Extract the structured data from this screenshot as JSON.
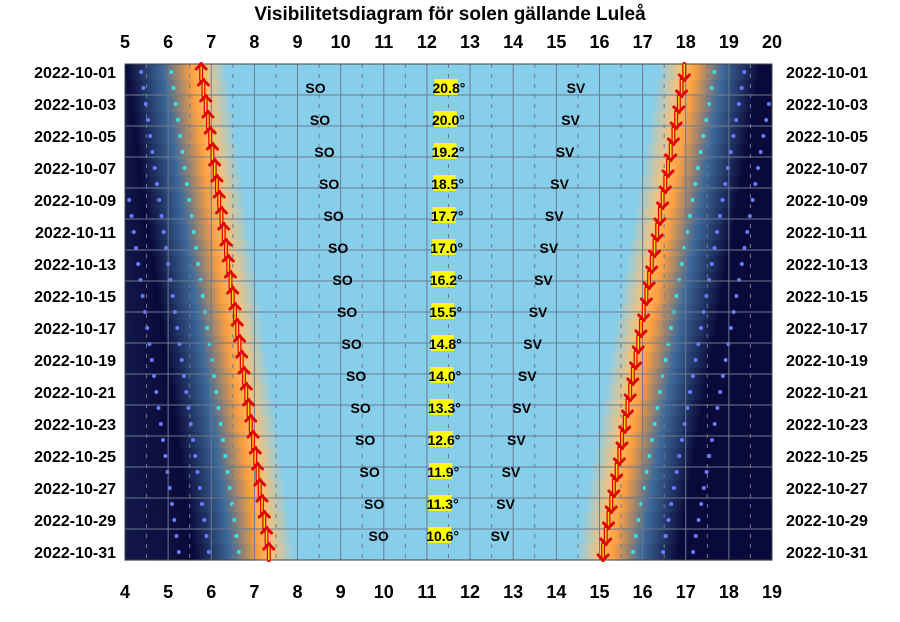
{
  "chart_data": {
    "type": "visibility-diagram",
    "title": "Visibilitetsdiagram för solen gällande Luleå",
    "top_axis_hours": [
      5,
      6,
      7,
      8,
      9,
      10,
      11,
      12,
      13,
      14,
      15,
      16,
      17,
      18,
      19,
      20
    ],
    "bottom_axis_hours": [
      4,
      5,
      6,
      7,
      8,
      9,
      10,
      11,
      12,
      13,
      14,
      15,
      16,
      17,
      18,
      19
    ],
    "date_labels": [
      "2022-10-01",
      "2022-10-03",
      "2022-10-05",
      "2022-10-07",
      "2022-10-09",
      "2022-10-11",
      "2022-10-13",
      "2022-10-15",
      "2022-10-17",
      "2022-10-19",
      "2022-10-21",
      "2022-10-23",
      "2022-10-25",
      "2022-10-27",
      "2022-10-29",
      "2022-10-31"
    ],
    "days_in_period": 31,
    "sunrise_dir": "SO",
    "sunset_dir": "SV",
    "elevations": [
      "20.8°",
      "20.0°",
      "19.2°",
      "18.5°",
      "17.7°",
      "17.0°",
      "16.2°",
      "15.5°",
      "14.8°",
      "14.0°",
      "13.3°",
      "12.6°",
      "11.9°",
      "11.3°",
      "10.6°"
    ],
    "sunrise_first": 6.75,
    "sunrise_last": 7.35,
    "sunset_first": 17.95,
    "sunset_last": 15.1,
    "colors": {
      "day": "#87ceeb",
      "night": "#0a0a3a",
      "twilight": "#3e6a9a",
      "glow": "#ffa040",
      "arrow_shaft": "#ffd700",
      "arrow_outline": "#e00000",
      "elevation_box": "#ffff00",
      "star_light": "#40e0e0",
      "star_dark": "#6a7aff"
    }
  }
}
